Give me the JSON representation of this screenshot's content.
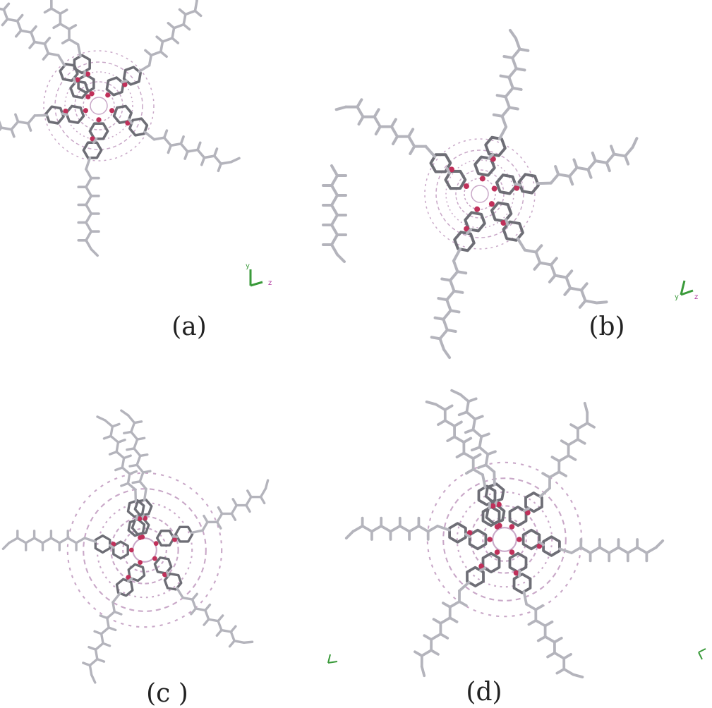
{
  "panels": [
    {
      "label": "(a)",
      "axis_labels": [
        "y",
        "z"
      ]
    },
    {
      "label": "(b)",
      "axis_labels": [
        "y",
        "z"
      ]
    },
    {
      "label": "(c )"
    },
    {
      "label": "(d)"
    }
  ]
}
